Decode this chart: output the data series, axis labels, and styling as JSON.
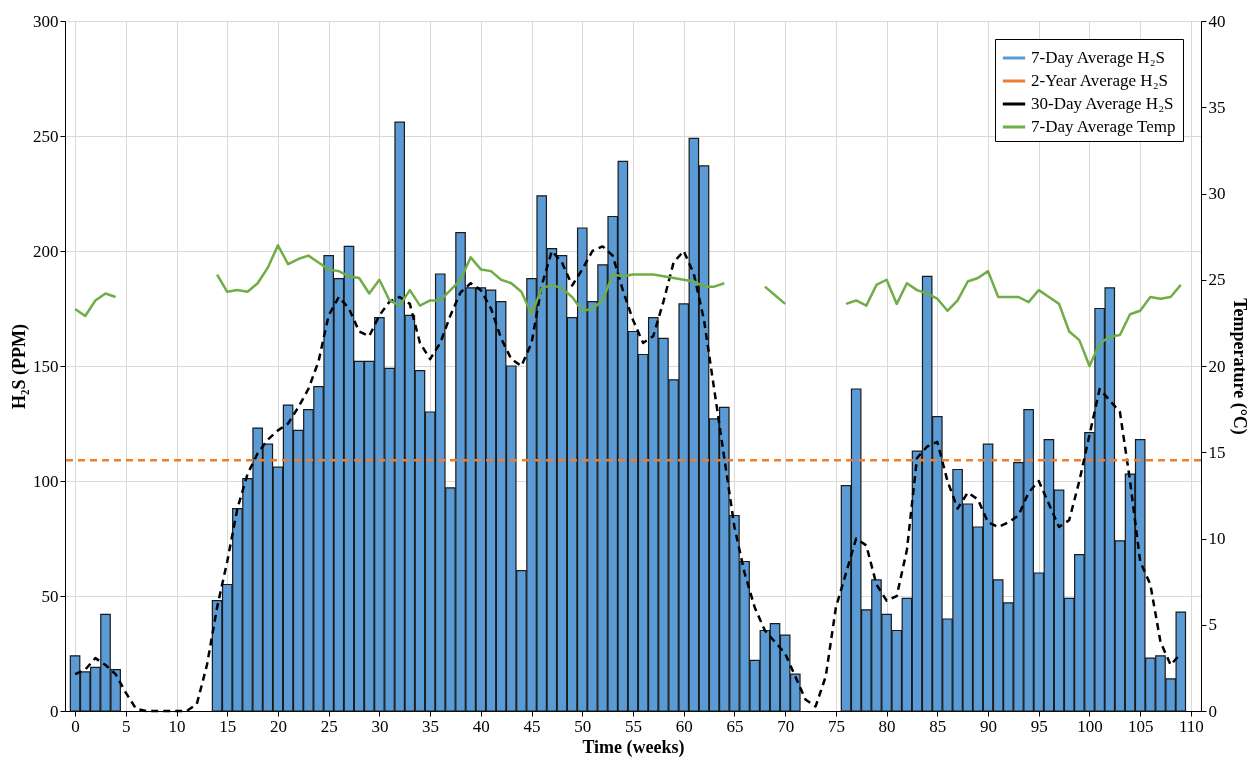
{
  "chart_data": {
    "type": "bar",
    "xlabel": "Time (weeks)",
    "ylabel": "H₂S (PPM)",
    "y2label": "Temperature (°C)",
    "x": [
      0,
      1,
      2,
      3,
      4,
      5,
      6,
      7,
      8,
      9,
      10,
      11,
      12,
      13,
      14,
      15,
      16,
      17,
      18,
      19,
      20,
      21,
      22,
      23,
      24,
      25,
      26,
      27,
      28,
      29,
      30,
      31,
      32,
      33,
      34,
      35,
      36,
      37,
      38,
      39,
      40,
      41,
      42,
      43,
      44,
      45,
      46,
      47,
      48,
      49,
      50,
      51,
      52,
      53,
      54,
      55,
      56,
      57,
      58,
      59,
      60,
      61,
      62,
      63,
      64,
      65,
      66,
      67,
      68,
      69,
      70,
      71,
      72,
      73,
      74,
      75,
      76,
      77,
      78,
      79,
      80,
      81,
      82,
      83,
      84,
      85,
      86,
      87,
      88,
      89,
      90,
      91,
      92,
      93,
      94,
      95,
      96,
      97,
      98,
      99,
      100,
      101,
      102,
      103,
      104,
      105,
      106,
      107,
      108,
      109
    ],
    "series": [
      {
        "name": "7-Day Average H₂S",
        "color": "#5b9bd5",
        "values": [
          24,
          17,
          19,
          42,
          18,
          0,
          0,
          0,
          0,
          0,
          0,
          0,
          0,
          0,
          48,
          55,
          88,
          101,
          123,
          116,
          106,
          133,
          122,
          131,
          141,
          198,
          188,
          202,
          152,
          152,
          171,
          149,
          256,
          172,
          148,
          130,
          190,
          97,
          208,
          184,
          184,
          183,
          178,
          150,
          61,
          188,
          224,
          201,
          198,
          171,
          210,
          178,
          194,
          215,
          239,
          165,
          155,
          171,
          162,
          144,
          177,
          249,
          237,
          127,
          132,
          85,
          65,
          22,
          35,
          38,
          33,
          16,
          0,
          0,
          0,
          0,
          98,
          140,
          44,
          57,
          42,
          35,
          49,
          113,
          189,
          128,
          40,
          105,
          90,
          80,
          116,
          57,
          47,
          108,
          131,
          60,
          118,
          96,
          49,
          68,
          121,
          175,
          184,
          74,
          103,
          118,
          23,
          24,
          14,
          43
        ]
      },
      {
        "name": "30-Day Average H₂S",
        "type": "line",
        "line_style": "dashed",
        "color": "#000000",
        "values": [
          16,
          18,
          23,
          20,
          16,
          8,
          1,
          0,
          0,
          0,
          0,
          0,
          3,
          20,
          45,
          65,
          88,
          103,
          112,
          118,
          122,
          125,
          132,
          140,
          152,
          172,
          180,
          175,
          165,
          163,
          172,
          178,
          180,
          177,
          160,
          153,
          160,
          172,
          182,
          186,
          183,
          175,
          162,
          153,
          150,
          160,
          185,
          200,
          195,
          185,
          192,
          200,
          202,
          198,
          183,
          170,
          160,
          163,
          178,
          195,
          200,
          190,
          170,
          140,
          110,
          80,
          60,
          45,
          35,
          30,
          25,
          15,
          5,
          2,
          15,
          45,
          60,
          75,
          72,
          55,
          48,
          50,
          70,
          110,
          115,
          117,
          100,
          88,
          95,
          92,
          82,
          80,
          82,
          85,
          95,
          100,
          90,
          80,
          83,
          100,
          120,
          140,
          135,
          130,
          100,
          65,
          55,
          30,
          20,
          25
        ]
      },
      {
        "name": "7-Day Average Temp",
        "type": "line",
        "axis": "y2",
        "line_style": "solid",
        "color": "#70ad47",
        "values": [
          23.3,
          22.9,
          23.8,
          24.2,
          24.0,
          null,
          null,
          null,
          null,
          null,
          null,
          null,
          null,
          null,
          25.3,
          24.3,
          24.4,
          24.3,
          24.8,
          25.7,
          27.0,
          25.9,
          26.2,
          26.4,
          26.0,
          25.6,
          25.5,
          25.2,
          25.1,
          24.2,
          25.0,
          23.8,
          23.5,
          24.4,
          23.5,
          23.8,
          23.8,
          24.4,
          25.0,
          26.3,
          25.6,
          25.5,
          25.0,
          24.8,
          24.3,
          23.0,
          24.5,
          24.7,
          24.5,
          24.0,
          23.2,
          23.3,
          23.8,
          25.3,
          25.2,
          25.3,
          25.3,
          25.3,
          25.2,
          25.1,
          25.0,
          24.9,
          24.6,
          24.6,
          24.8,
          null,
          null,
          null,
          24.6,
          24.1,
          23.6,
          null,
          null,
          null,
          null,
          null,
          23.6,
          23.8,
          23.5,
          24.7,
          25.0,
          23.6,
          24.8,
          24.4,
          24.2,
          23.9,
          23.2,
          23.8,
          24.9,
          25.1,
          25.5,
          24.0,
          24.0,
          24.0,
          23.7,
          24.4,
          24.0,
          23.6,
          22.0,
          21.5,
          20.0,
          21.3,
          21.7,
          21.8,
          23.0,
          23.2,
          24.0,
          23.9,
          24.0,
          24.7
        ]
      }
    ],
    "ref_lines": [
      {
        "axis": "y",
        "value": 109,
        "label": "2-Year Average H₂S",
        "color": "#ed7d31",
        "line_style": "dashed"
      }
    ],
    "xlim": [
      -0.5,
      110.5
    ],
    "xticks": [
      0,
      5,
      10,
      15,
      20,
      25,
      30,
      35,
      40,
      45,
      50,
      55,
      60,
      65,
      70,
      75,
      80,
      85,
      90,
      95,
      100,
      105,
      110
    ],
    "ylim": [
      0,
      300
    ],
    "yticks": [
      0,
      50,
      100,
      150,
      200,
      250,
      300
    ],
    "y2lim": [
      0,
      40
    ],
    "y2ticks": [
      0,
      5,
      10,
      15,
      20,
      25,
      30,
      35,
      40
    ],
    "grid": true,
    "legend": "top right"
  }
}
